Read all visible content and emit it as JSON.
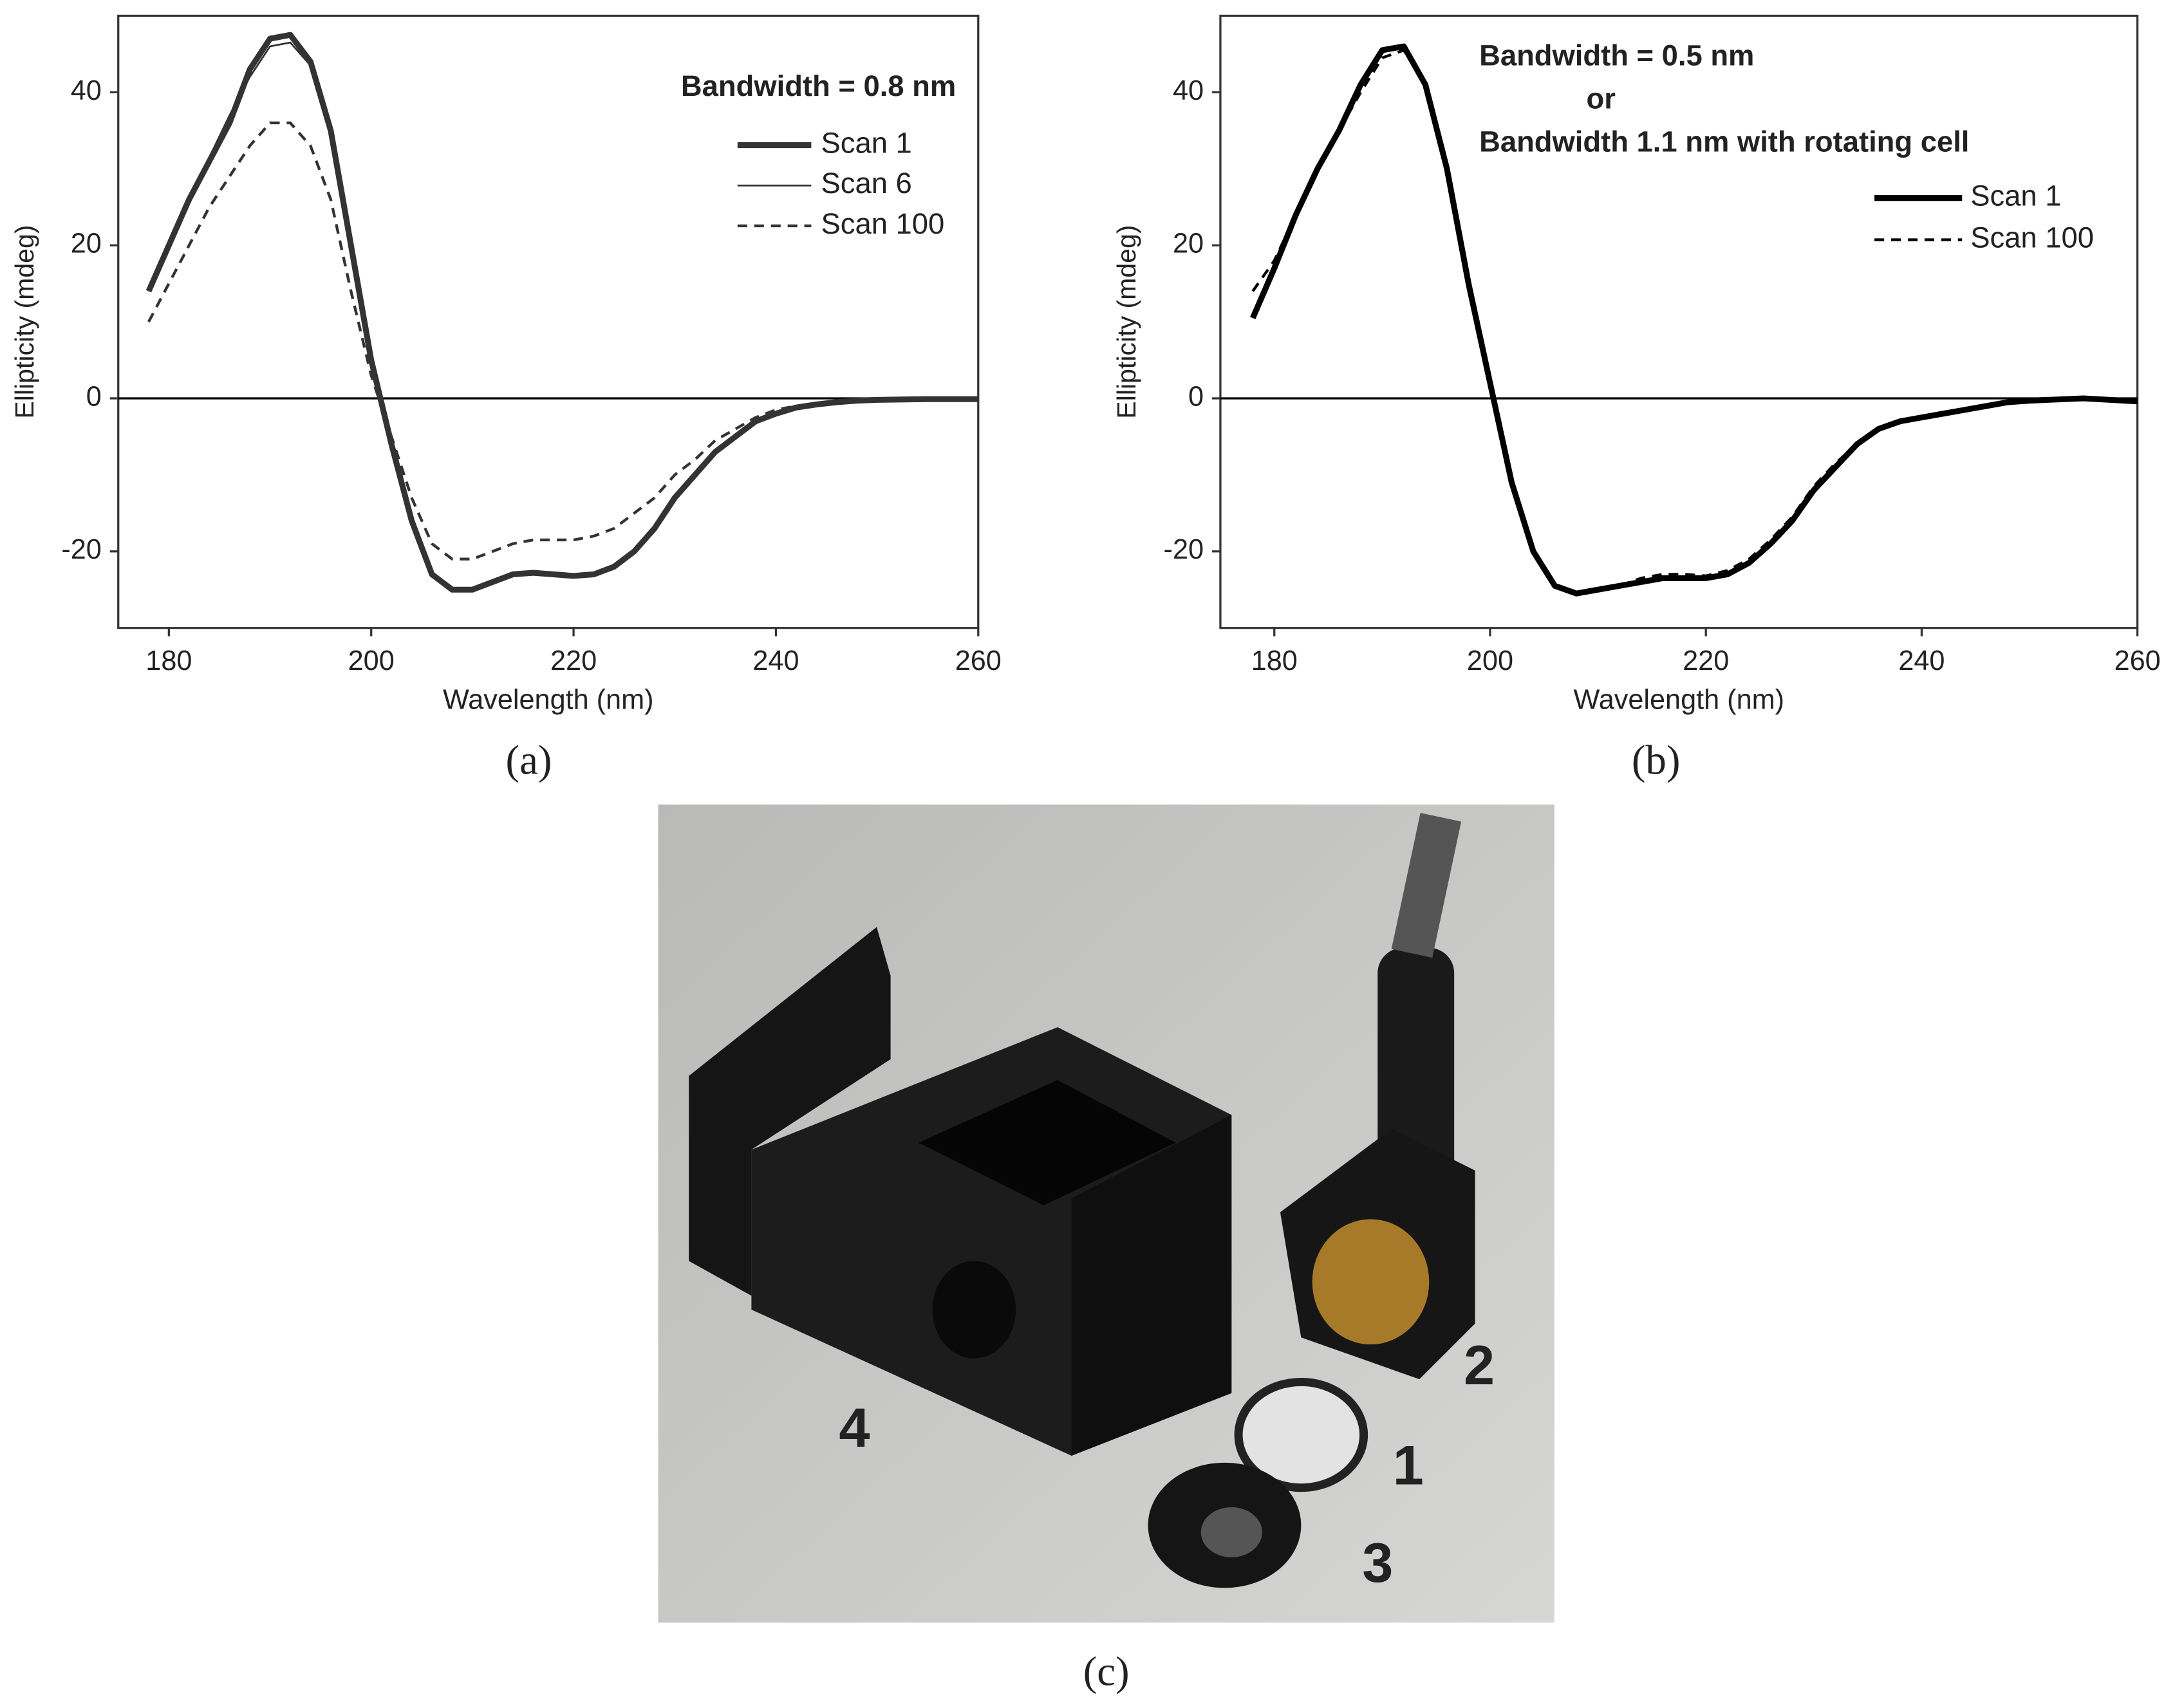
{
  "chart_data": [
    {
      "type": "line",
      "panel_label": "(a)",
      "x_label": "Wavelength (nm)",
      "y_label": "Ellipticity (mdeg)",
      "annotation": [
        "Bandwidth = 0.8 nm"
      ],
      "xlim": [
        175,
        260
      ],
      "ylim": [
        -30,
        50
      ],
      "xticks": [
        180,
        200,
        220,
        240,
        260
      ],
      "yticks": [
        -20,
        0,
        20,
        40
      ],
      "zero_line": true,
      "x": [
        178,
        180,
        182,
        184,
        186,
        188,
        190,
        192,
        194,
        196,
        198,
        200,
        202,
        204,
        206,
        208,
        210,
        212,
        214,
        216,
        218,
        220,
        222,
        224,
        226,
        228,
        230,
        232,
        234,
        236,
        238,
        240,
        242,
        244,
        246,
        248,
        250,
        255,
        260
      ],
      "series": [
        {
          "name": "Scan 1",
          "color": "#333333",
          "style": "thick",
          "values": [
            14,
            20,
            26,
            31,
            36,
            43,
            47,
            47.5,
            44,
            35,
            20,
            5,
            -6,
            -16,
            -23,
            -25,
            -25,
            -24,
            -23,
            -22.8,
            -23,
            -23.2,
            -23,
            -22,
            -20,
            -17,
            -13,
            -10,
            -7,
            -5,
            -3,
            -2,
            -1.2,
            -0.8,
            -0.5,
            -0.3,
            -0.2,
            -0.1,
            -0.1
          ]
        },
        {
          "name": "Scan 6",
          "color": "#333333",
          "style": "thin",
          "values": [
            14,
            20,
            26,
            31.5,
            37,
            42,
            46,
            46.5,
            43.5,
            34.5,
            20,
            5,
            -6,
            -16,
            -23,
            -25,
            -24.8,
            -23.8,
            -23,
            -22.8,
            -23,
            -23,
            -22.8,
            -22,
            -20,
            -17,
            -13,
            -10,
            -7,
            -5,
            -3,
            -2,
            -1.2,
            -0.8,
            -0.5,
            -0.3,
            -0.2,
            -0.1,
            -0.1
          ]
        },
        {
          "name": "Scan 100",
          "color": "#333333",
          "style": "dashed",
          "values": [
            10,
            15,
            20,
            25,
            29,
            33,
            36,
            36,
            33,
            26,
            14,
            3,
            -5,
            -13,
            -19,
            -21,
            -21,
            -20,
            -19,
            -18.5,
            -18.5,
            -18.5,
            -18,
            -17,
            -15,
            -13,
            -10,
            -8,
            -5.5,
            -4,
            -2.5,
            -1.5,
            -1,
            -0.6,
            -0.4,
            -0.3,
            -0.2,
            -0.1,
            -0.1
          ]
        }
      ]
    },
    {
      "type": "line",
      "panel_label": "(b)",
      "x_label": "Wavelength (nm)",
      "y_label": "Ellipticity (mdeg)",
      "annotation": [
        "Bandwidth = 0.5 nm",
        "or",
        "Bandwidth 1.1 nm with rotating cell"
      ],
      "xlim": [
        175,
        260
      ],
      "ylim": [
        -30,
        50
      ],
      "xticks": [
        180,
        200,
        220,
        240,
        260
      ],
      "yticks": [
        -20,
        0,
        20,
        40
      ],
      "zero_line": true,
      "x": [
        178,
        180,
        182,
        184,
        186,
        188,
        190,
        192,
        194,
        196,
        198,
        200,
        202,
        204,
        206,
        208,
        210,
        212,
        214,
        216,
        218,
        220,
        222,
        224,
        226,
        228,
        230,
        232,
        234,
        236,
        238,
        240,
        242,
        244,
        246,
        248,
        250,
        255,
        260
      ],
      "series": [
        {
          "name": "Scan 1",
          "color": "#000000",
          "style": "thick",
          "values": [
            10.5,
            17,
            24,
            30,
            35,
            41,
            45.5,
            46,
            41,
            30,
            15,
            2,
            -11,
            -20,
            -24.5,
            -25.5,
            -25,
            -24.5,
            -24,
            -23.5,
            -23.5,
            -23.5,
            -23,
            -21.5,
            -19,
            -16,
            -12,
            -9,
            -6,
            -4,
            -3,
            -2.5,
            -2,
            -1.5,
            -1,
            -0.5,
            -0.3,
            0,
            -0.4
          ]
        },
        {
          "name": "Scan 100",
          "color": "#000000",
          "style": "dashed",
          "values": [
            14,
            18,
            24,
            30,
            35,
            40,
            44.5,
            45.5,
            41,
            30,
            15,
            2,
            -11,
            -20,
            -24.5,
            -25.5,
            -25,
            -24.5,
            -23.5,
            -23,
            -23,
            -23.2,
            -22.5,
            -21,
            -18.5,
            -15.5,
            -11.5,
            -8.5,
            -6,
            -4,
            -3,
            -2.5,
            -2,
            -1.5,
            -1,
            -0.5,
            -0.3,
            0,
            -0.3
          ]
        }
      ]
    }
  ],
  "photo": {
    "caption": "(c)",
    "labels": [
      "4",
      "2",
      "1",
      "3"
    ]
  }
}
